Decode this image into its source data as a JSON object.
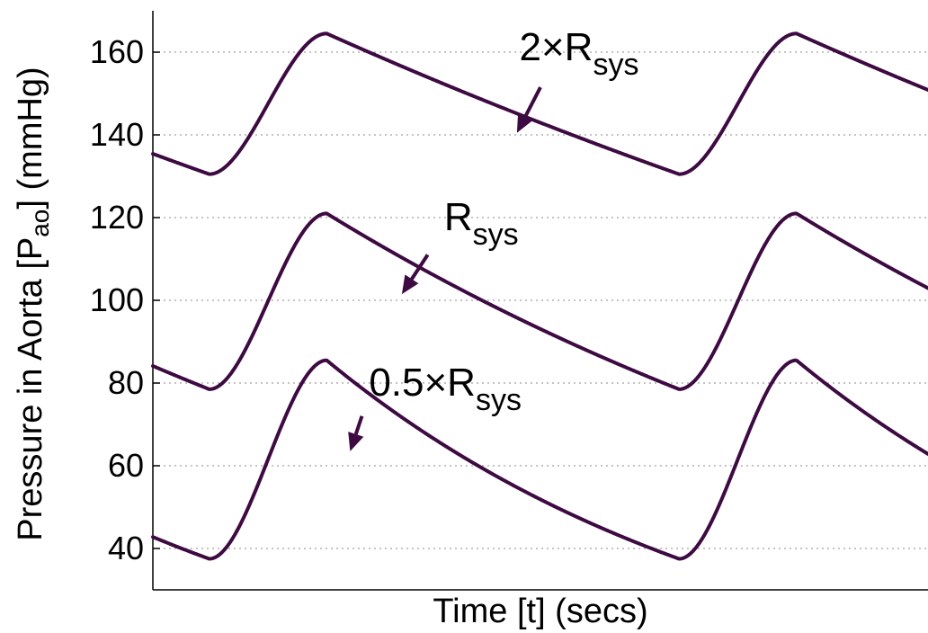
{
  "chart_data": {
    "type": "line",
    "title": "",
    "xlabel": "Time [t] (secs)",
    "ylabel": {
      "prefix": "Pressure in Aorta [P",
      "subscript": "ao",
      "suffix": "] (mmHg)"
    },
    "xlim": [
      0,
      1.65
    ],
    "ylim": [
      30,
      170
    ],
    "y_ticks": [
      40,
      60,
      80,
      100,
      120,
      140,
      160
    ],
    "y_tick_labels": [
      "40",
      "60",
      "80",
      "100",
      "120",
      "140",
      "160"
    ],
    "x_ticks_shown": false,
    "grid": {
      "y_major": true,
      "style": "dotted"
    },
    "line_color": "#3d0a42",
    "waveform": {
      "cycle_start": 0.12,
      "period": 1.0,
      "peak_offset": 0.25
    },
    "series": [
      {
        "name": "2×R_sys",
        "min": 130.5,
        "max": 164.5,
        "start_value": 134.5
      },
      {
        "name": "R_sys",
        "min": 78.5,
        "max": 121,
        "start_value": 81.5
      },
      {
        "name": "0.5×R_sys",
        "min": 37.5,
        "max": 85.5,
        "start_value": 39
      }
    ],
    "annotations": [
      {
        "series": 0,
        "label_main": "2×R",
        "label_sub": "sys",
        "text_x": 0.78,
        "text_y": 158,
        "arrow_from": [
          0.825,
          151.5
        ],
        "arrow_to": [
          0.775,
          140.5
        ]
      },
      {
        "series": 1,
        "label_main": "R",
        "label_sub": "sys",
        "text_x": 0.62,
        "text_y": 117,
        "arrow_from": [
          0.585,
          111
        ],
        "arrow_to": [
          0.53,
          101.5
        ]
      },
      {
        "series": 2,
        "label_main": "0.5×R",
        "label_sub": "sys",
        "text_x": 0.46,
        "text_y": 77,
        "arrow_from": [
          0.445,
          72
        ],
        "arrow_to": [
          0.42,
          63.5
        ]
      }
    ]
  }
}
